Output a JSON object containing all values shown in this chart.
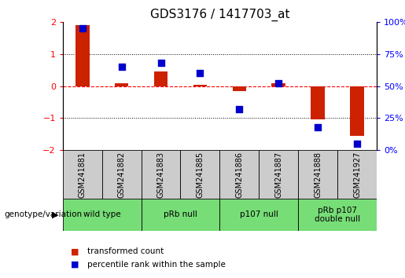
{
  "title": "GDS3176 / 1417703_at",
  "samples": [
    "GSM241881",
    "GSM241882",
    "GSM241883",
    "GSM241885",
    "GSM241886",
    "GSM241887",
    "GSM241888",
    "GSM241927"
  ],
  "red_bars": [
    1.9,
    0.1,
    0.45,
    0.05,
    -0.15,
    0.1,
    -1.05,
    -1.55
  ],
  "blue_dots": [
    95,
    65,
    68,
    60,
    32,
    52,
    18,
    5
  ],
  "groups": [
    {
      "label": "wild type",
      "start": 0,
      "end": 2,
      "color": "#aaddaa"
    },
    {
      "label": "pRb null",
      "start": 2,
      "end": 4,
      "color": "#88dd88"
    },
    {
      "label": "p107 null",
      "start": 4,
      "end": 6,
      "color": "#55cc55"
    },
    {
      "label": "pRb p107\ndouble null",
      "start": 6,
      "end": 8,
      "color": "#33bb33"
    }
  ],
  "ylim_left": [
    -2,
    2
  ],
  "ylim_right": [
    0,
    100
  ],
  "red_color": "#cc2200",
  "blue_color": "#0000cc",
  "bar_width": 0.35,
  "dot_size": 35,
  "legend_red": "transformed count",
  "legend_blue": "percentile rank within the sample",
  "genotype_label": "genotype/variation",
  "sample_box_color": "#cccccc",
  "group_all_color": "#77dd77"
}
